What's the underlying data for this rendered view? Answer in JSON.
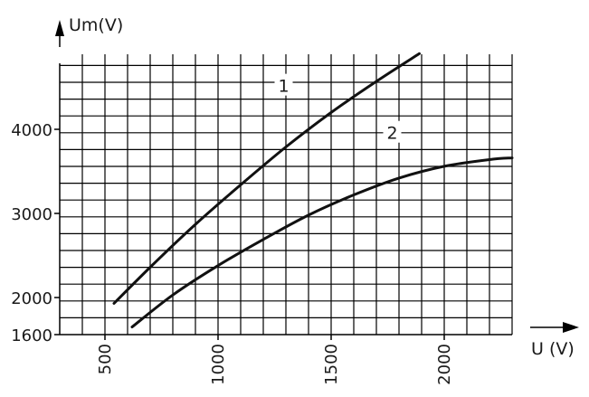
{
  "chart_data": {
    "type": "line",
    "title": "",
    "xlabel": "U (V)",
    "ylabel": "Um(V)",
    "xlim": [
      400,
      2300
    ],
    "ylim": [
      1600,
      4900
    ],
    "x_ticks": [
      {
        "value": 500,
        "label": "500"
      },
      {
        "value": 1000,
        "label": "1000"
      },
      {
        "value": 1500,
        "label": "1500"
      },
      {
        "value": 2000,
        "label": "2000"
      }
    ],
    "y_ticks": [
      {
        "value": 1600,
        "label": "1600"
      },
      {
        "value": 2000,
        "label": "2000"
      },
      {
        "value": 3000,
        "label": "3000"
      },
      {
        "value": 4000,
        "label": "4000"
      }
    ],
    "grid": true,
    "series": [
      {
        "name": "1",
        "label_at": [
          1290,
          4520
        ],
        "x": [
          540,
          700,
          900,
          1100,
          1300,
          1500,
          1700,
          1890
        ],
        "y": [
          1930,
          2360,
          2870,
          3340,
          3790,
          4200,
          4570,
          4900
        ]
      },
      {
        "name": "2",
        "label_at": [
          1770,
          3960
        ],
        "x": [
          620,
          800,
          1000,
          1200,
          1400,
          1600,
          1800,
          2000,
          2200,
          2300
        ],
        "y": [
          1650,
          2030,
          2380,
          2690,
          2980,
          3220,
          3420,
          3560,
          3640,
          3660
        ]
      }
    ]
  }
}
